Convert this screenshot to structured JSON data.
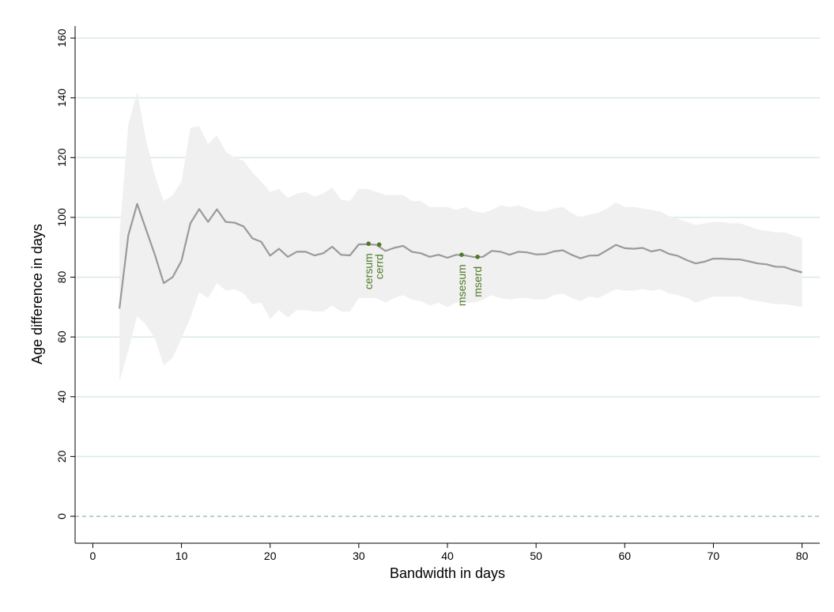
{
  "chart_data": {
    "type": "line",
    "title": "",
    "xlabel": "Bandwidth in days",
    "ylabel": "Age difference in days",
    "xlim": [
      -2,
      82
    ],
    "ylim": [
      -9,
      164
    ],
    "xticks": [
      0,
      10,
      20,
      30,
      40,
      50,
      60,
      70,
      80
    ],
    "yticks": [
      0,
      20,
      40,
      60,
      80,
      100,
      120,
      140,
      160
    ],
    "grid": "horizontal",
    "legend": "none",
    "reference_line": {
      "y": 0,
      "style": "dashed"
    },
    "colors": {
      "line": "#9a9a9a",
      "band": "#f0f0f0",
      "grid": "#dbeae9",
      "marker": "#4f7a28",
      "reference": "#8fb3b3"
    },
    "series": [
      {
        "type": "line",
        "x": [
          3,
          4,
          5,
          6,
          7,
          8,
          9,
          10,
          11,
          12,
          13,
          14,
          15,
          16,
          17,
          18,
          19,
          20,
          21,
          22,
          23,
          24,
          25,
          26,
          27,
          28,
          29,
          30,
          31,
          32,
          33,
          34,
          35,
          36,
          37,
          38,
          39,
          40,
          41,
          42,
          43,
          44,
          45,
          46,
          47,
          48,
          49,
          50,
          51,
          52,
          53,
          54,
          55,
          56,
          57,
          58,
          59,
          60,
          61,
          62,
          63,
          64,
          65,
          66,
          67,
          68,
          69,
          70,
          71,
          72,
          73,
          74,
          75,
          76,
          77,
          78,
          79,
          80
        ],
        "y": [
          69.5,
          94,
          104.5,
          96,
          87.5,
          78,
          80,
          85.5,
          98,
          102.8,
          98.5,
          102.7,
          98.5,
          98.2,
          97,
          93,
          91.8,
          87.2,
          89.5,
          86.8,
          88.5,
          88.5,
          87.3,
          88,
          90.2,
          87.5,
          87.3,
          91,
          91,
          90.8,
          88.8,
          89.8,
          90.5,
          88.5,
          88,
          86.8,
          87.5,
          86.5,
          87.5,
          87.3,
          86.7,
          86.8,
          88.8,
          88.5,
          87.5,
          88.5,
          88.3,
          87.6,
          87.7,
          88.6,
          89,
          87.5,
          86.3,
          87.2,
          87.3,
          89,
          90.8,
          89.7,
          89.5,
          89.8,
          88.6,
          89.2,
          87.8,
          87.1,
          85.7,
          84.6,
          85.2,
          86.2,
          86.2,
          86,
          85.9,
          85.3,
          84.6,
          84.3,
          83.5,
          83.4,
          82.4,
          81.6
        ]
      },
      {
        "type": "band",
        "x": [
          3,
          4,
          5,
          6,
          7,
          8,
          9,
          10,
          11,
          12,
          13,
          14,
          15,
          16,
          17,
          18,
          19,
          20,
          21,
          22,
          23,
          24,
          25,
          26,
          27,
          28,
          29,
          30,
          31,
          32,
          33,
          34,
          35,
          36,
          37,
          38,
          39,
          40,
          41,
          42,
          43,
          44,
          45,
          46,
          47,
          48,
          49,
          50,
          51,
          52,
          53,
          54,
          55,
          56,
          57,
          58,
          59,
          60,
          61,
          62,
          63,
          64,
          65,
          66,
          67,
          68,
          69,
          70,
          71,
          72,
          73,
          74,
          75,
          76,
          77,
          78,
          79,
          80
        ],
        "upper": [
          94,
          131,
          142,
          126,
          114,
          105.5,
          107.5,
          112,
          130,
          130.5,
          124.5,
          127.5,
          122,
          120,
          119,
          115,
          112,
          108.5,
          109.5,
          106.5,
          108,
          108.5,
          107,
          108,
          110,
          106,
          105.5,
          109.5,
          109.5,
          108.5,
          107.5,
          107.5,
          107.5,
          105.5,
          105.5,
          103.5,
          103.5,
          103.5,
          102.5,
          103.5,
          102,
          101.5,
          102.5,
          104,
          103.5,
          104,
          103,
          102,
          102,
          103,
          103.5,
          101.5,
          100,
          101,
          101.5,
          103,
          105,
          103.5,
          103.5,
          103,
          102.5,
          102,
          100.5,
          99.5,
          98.5,
          97.5,
          98,
          98.5,
          98.5,
          98,
          98,
          97,
          96,
          95.5,
          95,
          95,
          94,
          93
        ],
        "lower": [
          45,
          55.5,
          67,
          64,
          59.5,
          50.5,
          53,
          59.5,
          66.5,
          75,
          73,
          78,
          75.5,
          76,
          74.5,
          71,
          71.5,
          66,
          69,
          66.5,
          69,
          69,
          68.5,
          68.5,
          70.5,
          68.5,
          68.5,
          73,
          73,
          73,
          71.5,
          73,
          74,
          72.5,
          72,
          70.5,
          71.5,
          70,
          71.5,
          71.5,
          71.5,
          72.5,
          74,
          73,
          72.5,
          73,
          73,
          72.5,
          72.5,
          74,
          74.5,
          73,
          72,
          73.5,
          73,
          74.5,
          76,
          75.5,
          75.5,
          76,
          75.5,
          76,
          74.5,
          74,
          73,
          71.5,
          72.5,
          73.5,
          73.5,
          73.5,
          73.5,
          72.5,
          72,
          71.5,
          71,
          71,
          70.5,
          70
        ]
      }
    ],
    "annotations": [
      {
        "label": "cersum",
        "x": 31.1,
        "y": 91.2
      },
      {
        "label": "cerrd",
        "x": 32.3,
        "y": 90.9
      },
      {
        "label": "msesum",
        "x": 41.6,
        "y": 87.5
      },
      {
        "label": "mserd",
        "x": 43.4,
        "y": 86.8
      }
    ]
  }
}
